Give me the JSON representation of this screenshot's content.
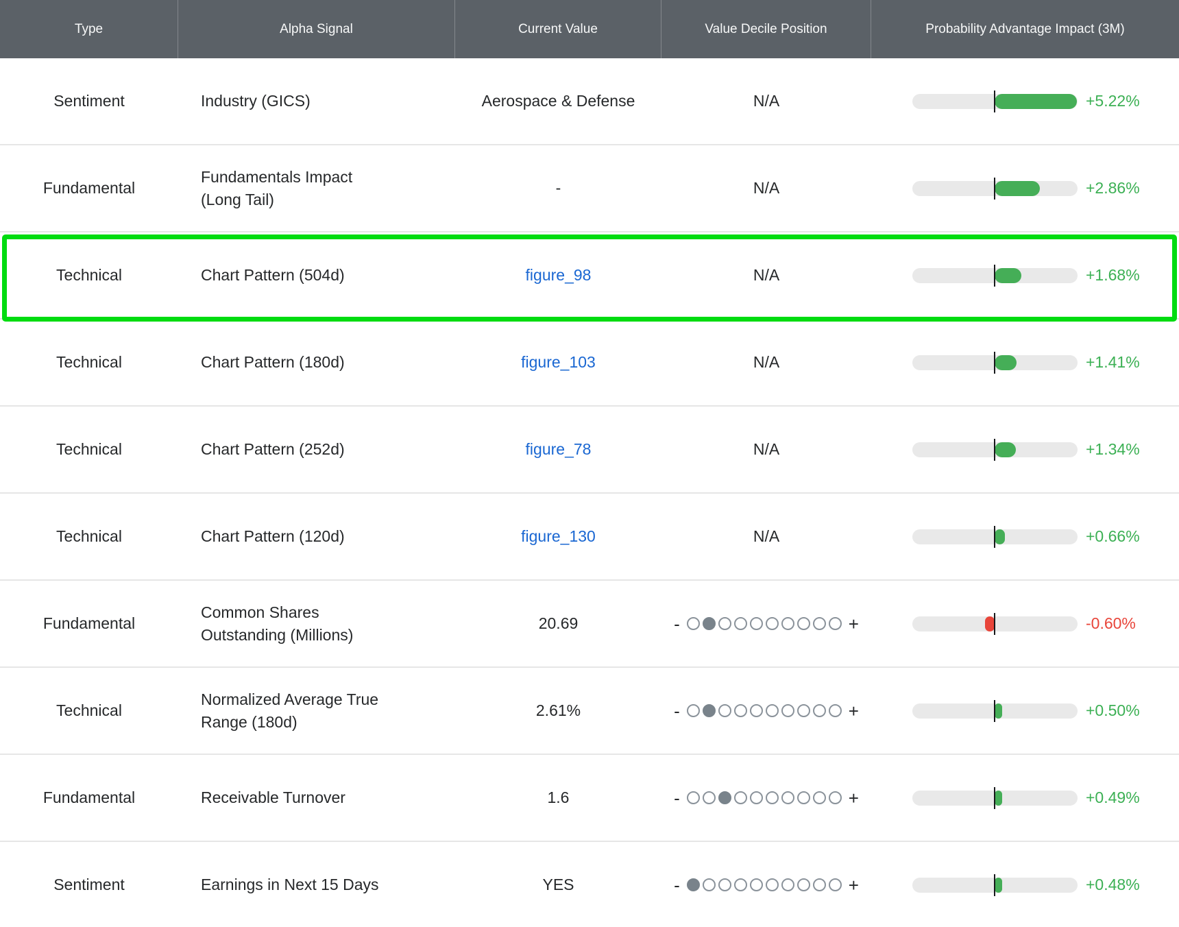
{
  "colors": {
    "header_bg": "#5b6167",
    "positive_green_text": "#3cb054",
    "positive_green_fill": "#45ae57",
    "negative_red": "#e8453a",
    "link_blue": "#1a67d2",
    "highlight_border_green": "#00dc10",
    "track_gray": "#e9e9e9",
    "decile_dot_gray": "#79838b"
  },
  "table": {
    "columns": [
      {
        "label": "Type"
      },
      {
        "label": "Alpha Signal"
      },
      {
        "label": "Current Value"
      },
      {
        "label": "Value Decile Position"
      },
      {
        "label": "Probability Advantage Impact (3M)"
      }
    ],
    "impact_bar": {
      "max_abs_pct": 5.22,
      "minus_sign": "-",
      "plus_sign": "+",
      "decile_count": 10,
      "na_label": "N/A"
    },
    "rows": [
      {
        "type": "Sentiment",
        "signal": "Industry (GICS)",
        "value": "Aerospace & Defense",
        "value_is_link": false,
        "decile": "N/A",
        "impact_label": "+5.22%",
        "impact_pct": 5.22,
        "highlighted": false
      },
      {
        "type": "Fundamental",
        "signal": "Fundamentals Impact\n(Long Tail)",
        "value": "-",
        "value_is_link": false,
        "decile": "N/A",
        "impact_label": "+2.86%",
        "impact_pct": 2.86,
        "highlighted": false
      },
      {
        "type": "Technical",
        "signal": "Chart Pattern (504d)",
        "value": "figure_98",
        "value_is_link": true,
        "decile": "N/A",
        "impact_label": "+1.68%",
        "impact_pct": 1.68,
        "highlighted": true
      },
      {
        "type": "Technical",
        "signal": "Chart Pattern (180d)",
        "value": "figure_103",
        "value_is_link": true,
        "decile": "N/A",
        "impact_label": "+1.41%",
        "impact_pct": 1.41,
        "highlighted": false
      },
      {
        "type": "Technical",
        "signal": "Chart Pattern (252d)",
        "value": "figure_78",
        "value_is_link": true,
        "decile": "N/A",
        "impact_label": "+1.34%",
        "impact_pct": 1.34,
        "highlighted": false
      },
      {
        "type": "Technical",
        "signal": "Chart Pattern (120d)",
        "value": "figure_130",
        "value_is_link": true,
        "decile": "N/A",
        "impact_label": "+0.66%",
        "impact_pct": 0.66,
        "highlighted": false
      },
      {
        "type": "Fundamental",
        "signal": "Common Shares\nOutstanding (Millions)",
        "value": "20.69",
        "value_is_link": false,
        "decile": 2,
        "impact_label": "-0.60%",
        "impact_pct": -0.6,
        "highlighted": false
      },
      {
        "type": "Technical",
        "signal": "Normalized Average True\nRange (180d)",
        "value": "2.61%",
        "value_is_link": false,
        "decile": 2,
        "impact_label": "+0.50%",
        "impact_pct": 0.5,
        "highlighted": false
      },
      {
        "type": "Fundamental",
        "signal": "Receivable Turnover",
        "value": "1.6",
        "value_is_link": false,
        "decile": 3,
        "impact_label": "+0.49%",
        "impact_pct": 0.49,
        "highlighted": false
      },
      {
        "type": "Sentiment",
        "signal": "Earnings in Next 15 Days",
        "value": "YES",
        "value_is_link": false,
        "decile": 1,
        "impact_label": "+0.48%",
        "impact_pct": 0.48,
        "highlighted": false
      }
    ]
  }
}
